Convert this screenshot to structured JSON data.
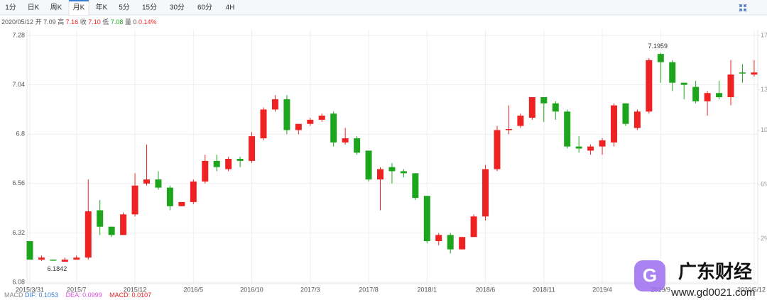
{
  "toolbar": {
    "tabs": [
      "1分",
      "日K",
      "周K",
      "月K",
      "年K",
      "5分",
      "15分",
      "30分",
      "60分",
      "4H"
    ]
  },
  "quote": {
    "date": "2020/05/12",
    "open_label": "开",
    "open": "7.09",
    "high_label": "高",
    "high": "7.16",
    "close_label": "收",
    "close": "7.10",
    "low_label": "低",
    "low": "7.08",
    "volume_label": "量",
    "volume": "0",
    "change": "0.14%"
  },
  "macd": {
    "name": "MACD",
    "dif": "DIF: 0.1053",
    "dea": "DEA: 0.0999",
    "macd": "MACD: 0.0107"
  },
  "watermark": {
    "title": "广东财经",
    "url": "www.gd0021.com"
  },
  "chart_data": {
    "type": "candlestick",
    "categories": [
      "2015/3/31",
      null,
      null,
      null,
      "2015/7",
      null,
      null,
      null,
      null,
      "2015/12",
      null,
      null,
      null,
      null,
      "2016/5",
      null,
      null,
      null,
      null,
      "2016/10",
      null,
      null,
      null,
      null,
      "2017/3",
      null,
      null,
      null,
      null,
      "2017/8",
      null,
      null,
      null,
      null,
      "2018/1",
      null,
      null,
      null,
      null,
      "2018/6",
      null,
      null,
      null,
      null,
      "2018/11",
      null,
      null,
      null,
      null,
      "2019/4",
      null,
      null,
      null,
      null,
      "2019/9",
      null,
      null,
      null,
      null,
      null,
      null,
      null,
      "2020/5/12"
    ],
    "open": [
      6.28,
      6.19,
      6.19,
      6.18,
      6.19,
      6.2,
      6.43,
      6.35,
      6.31,
      6.41,
      6.56,
      6.58,
      6.54,
      6.45,
      6.47,
      6.57,
      6.67,
      6.63,
      6.68,
      6.67,
      6.78,
      6.92,
      6.97,
      6.82,
      6.85,
      6.87,
      6.9,
      6.76,
      6.78,
      6.72,
      6.58,
      6.64,
      6.62,
      6.61,
      6.5,
      6.28,
      6.31,
      6.24,
      6.3,
      6.4,
      6.63,
      6.82,
      6.84,
      6.88,
      6.98,
      6.95,
      6.91,
      6.74,
      6.72,
      6.74,
      6.76,
      6.95,
      6.83,
      6.91,
      7.19,
      7.15,
      7.05,
      7.03,
      6.96,
      7.0,
      6.98,
      7.1,
      7.09
    ],
    "high": [
      6.28,
      6.21,
      6.19,
      6.2,
      6.21,
      6.58,
      6.48,
      6.35,
      6.42,
      6.61,
      6.75,
      6.62,
      6.55,
      6.47,
      6.58,
      6.7,
      6.7,
      6.69,
      6.69,
      6.81,
      6.93,
      6.99,
      6.99,
      6.85,
      6.88,
      6.9,
      6.91,
      6.83,
      6.79,
      6.72,
      6.64,
      6.66,
      6.63,
      6.61,
      6.5,
      6.32,
      6.32,
      6.3,
      6.41,
      6.65,
      6.84,
      6.94,
      6.9,
      6.98,
      6.98,
      6.96,
      6.92,
      6.79,
      6.75,
      6.78,
      6.95,
      6.95,
      6.92,
      7.17,
      7.1959,
      7.16,
      7.05,
      7.06,
      7.01,
      7.06,
      7.16,
      7.14,
      7.16
    ],
    "low": [
      6.19,
      6.1842,
      6.185,
      6.185,
      6.19,
      6.19,
      6.31,
      6.3,
      6.31,
      6.4,
      6.55,
      6.53,
      6.43,
      6.45,
      6.46,
      6.56,
      6.62,
      6.62,
      6.64,
      6.66,
      6.77,
      6.91,
      6.8,
      6.8,
      6.84,
      6.86,
      6.74,
      6.75,
      6.7,
      6.57,
      6.43,
      6.56,
      6.59,
      6.48,
      6.27,
      6.26,
      6.22,
      6.24,
      6.3,
      6.38,
      6.62,
      6.8,
      6.83,
      6.87,
      6.86,
      6.87,
      6.73,
      6.71,
      6.7,
      6.7,
      6.74,
      6.84,
      6.82,
      6.9,
      7.05,
      7.01,
      6.97,
      6.95,
      6.89,
      6.97,
      6.94,
      7.05,
      7.08
    ],
    "close": [
      6.19,
      6.2,
      6.185,
      6.19,
      6.2,
      6.425,
      6.35,
      6.31,
      6.41,
      6.55,
      6.58,
      6.54,
      6.45,
      6.47,
      6.57,
      6.67,
      6.64,
      6.68,
      6.67,
      6.79,
      6.92,
      6.97,
      6.82,
      6.85,
      6.87,
      6.89,
      6.76,
      6.78,
      6.71,
      6.58,
      6.63,
      6.62,
      6.61,
      6.49,
      6.28,
      6.31,
      6.24,
      6.3,
      6.4,
      6.63,
      6.82,
      6.825,
      6.89,
      6.98,
      6.95,
      6.91,
      6.74,
      6.73,
      6.74,
      6.77,
      6.94,
      6.85,
      6.91,
      7.16,
      7.15,
      7.05,
      7.04,
      6.96,
      7.0,
      6.98,
      7.09,
      7.095,
      7.1
    ],
    "up_color": "#ee2222",
    "down_color": "#1ea51e",
    "ylim": [
      6.08,
      7.28
    ],
    "yticks": [
      7.28,
      7.04,
      6.8,
      6.56,
      6.32,
      6.08
    ],
    "y2lim": [
      -1.2,
      17
    ],
    "y2ticks": [
      {
        "value": 17,
        "label": "17%"
      },
      {
        "value": 13,
        "label": "13%"
      },
      {
        "value": 10,
        "label": "10%"
      },
      {
        "value": 6,
        "label": "6%"
      },
      {
        "value": 2,
        "label": "2%"
      }
    ],
    "grid": true
  }
}
